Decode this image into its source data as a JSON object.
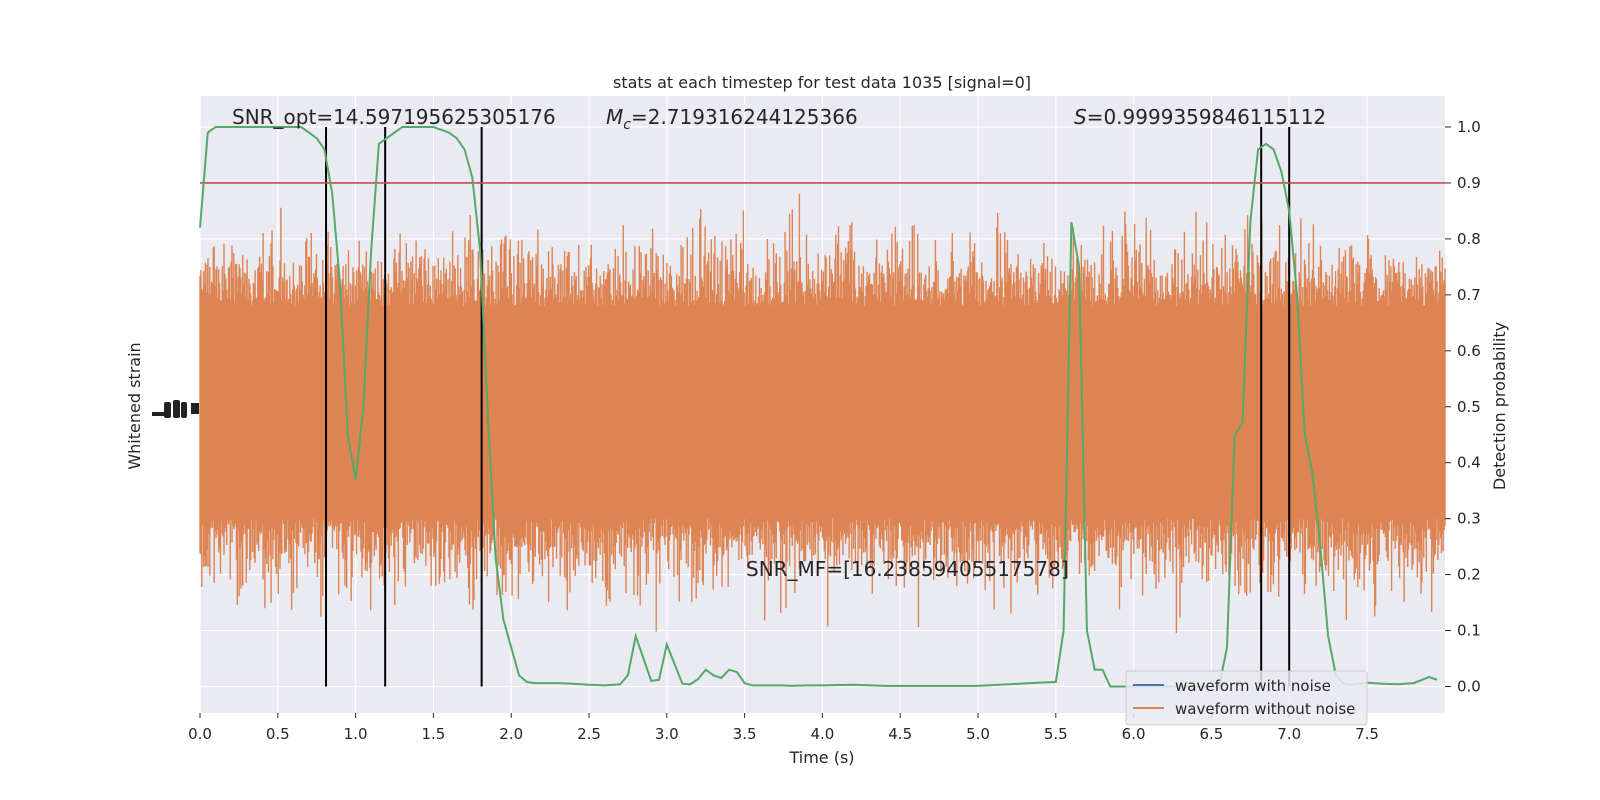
{
  "chart_data": {
    "type": "line",
    "title": "stats at each timestep for test data 1035 [signal=0]",
    "xlabel": "Time (s)",
    "ylabel_left": "Whitened strain",
    "ylabel_right": "Detection probability",
    "xlim": [
      0.0,
      8.0
    ],
    "ylim_right": [
      -0.05,
      1.05
    ],
    "xticks": [
      "0.0",
      "0.5",
      "1.0",
      "1.5",
      "2.0",
      "2.5",
      "3.0",
      "3.5",
      "4.0",
      "4.5",
      "5.0",
      "5.5",
      "6.0",
      "6.5",
      "7.0",
      "7.5"
    ],
    "yticks_right": [
      "0.0",
      "0.1",
      "0.2",
      "0.3",
      "0.4",
      "0.5",
      "0.6",
      "0.7",
      "0.8",
      "0.9",
      "1.0"
    ],
    "grid": true,
    "annotations": {
      "snr_opt": "SNR_opt=14.597195625305176",
      "mc_symbol": "M",
      "mc_sub": "c",
      "mc_value": "=2.719316244125366",
      "s_symbol": "S",
      "s_value": "=0.9999359846115112",
      "snr_mf": "SNR_MF=[16.23859405517578]"
    },
    "threshold": 0.9,
    "vlines_x": [
      0.81,
      1.19,
      1.81,
      6.82,
      7.0
    ],
    "series": [
      {
        "name": "waveform with noise",
        "color": "#4c72b0"
      },
      {
        "name": "waveform without noise",
        "color": "#dd8452"
      }
    ],
    "prob_color": "#55a868",
    "threshold_color": "#c44e52",
    "probability_x": [
      0.0,
      0.05,
      0.1,
      0.2,
      0.3,
      0.4,
      0.5,
      0.6,
      0.65,
      0.7,
      0.75,
      0.8,
      0.85,
      0.9,
      0.95,
      1.0,
      1.05,
      1.1,
      1.15,
      1.2,
      1.25,
      1.3,
      1.35,
      1.4,
      1.5,
      1.6,
      1.65,
      1.7,
      1.75,
      1.8,
      1.85,
      1.9,
      1.95,
      2.0,
      2.05,
      2.1,
      2.15,
      2.2,
      2.3,
      2.4,
      2.5,
      2.6,
      2.7,
      2.75,
      2.8,
      2.85,
      2.9,
      2.95,
      3.0,
      3.05,
      3.1,
      3.15,
      3.2,
      3.25,
      3.3,
      3.35,
      3.4,
      3.45,
      3.5,
      3.55,
      3.6,
      3.65,
      3.7,
      3.75,
      3.8,
      3.9,
      4.0,
      4.2,
      4.4,
      4.5,
      4.6,
      4.8,
      5.0,
      5.2,
      5.4,
      5.5,
      5.55,
      5.6,
      5.65,
      5.7,
      5.75,
      5.8,
      5.85,
      5.9,
      5.95,
      6.0,
      6.05,
      6.1,
      6.2,
      6.3,
      6.4,
      6.5,
      6.55,
      6.6,
      6.65,
      6.7,
      6.75,
      6.8,
      6.85,
      6.9,
      6.95,
      7.0,
      7.05,
      7.1,
      7.15,
      7.2,
      7.25,
      7.3,
      7.35,
      7.4,
      7.5,
      7.6,
      7.7,
      7.8,
      7.9,
      7.95
    ],
    "probability_y": [
      0.82,
      0.99,
      1.0,
      1.0,
      1.0,
      1.0,
      1.0,
      1.0,
      1.0,
      0.99,
      0.98,
      0.96,
      0.88,
      0.72,
      0.45,
      0.37,
      0.5,
      0.78,
      0.97,
      0.98,
      0.99,
      1.0,
      1.0,
      1.0,
      1.0,
      0.99,
      0.98,
      0.96,
      0.91,
      0.78,
      0.48,
      0.23,
      0.12,
      0.07,
      0.02,
      0.008,
      0.006,
      0.006,
      0.006,
      0.005,
      0.003,
      0.002,
      0.004,
      0.02,
      0.09,
      0.05,
      0.01,
      0.012,
      0.075,
      0.04,
      0.005,
      0.004,
      0.013,
      0.03,
      0.02,
      0.015,
      0.03,
      0.026,
      0.006,
      0.002,
      0.002,
      0.002,
      0.002,
      0.002,
      0.001,
      0.002,
      0.002,
      0.003,
      0.001,
      0.001,
      0.001,
      0.001,
      0.001,
      0.004,
      0.007,
      0.008,
      0.1,
      0.83,
      0.75,
      0.1,
      0.03,
      0.03,
      0.0,
      0.0,
      0.0,
      0.0,
      0.0,
      0.0,
      0.0,
      0.0,
      0.0,
      0.0,
      0.0,
      0.07,
      0.45,
      0.47,
      0.83,
      0.96,
      0.97,
      0.96,
      0.92,
      0.85,
      0.7,
      0.45,
      0.38,
      0.25,
      0.09,
      0.02,
      0.005,
      0.003,
      0.007,
      0.005,
      0.004,
      0.006,
      0.017,
      0.012
    ]
  }
}
